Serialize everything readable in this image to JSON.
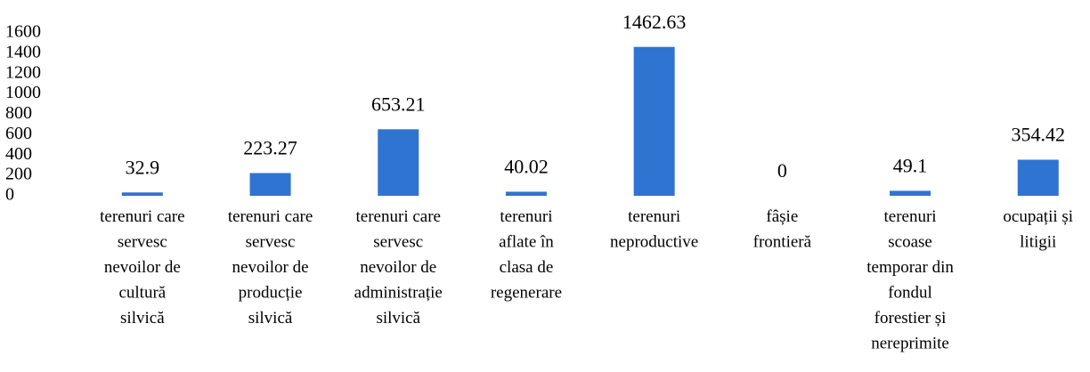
{
  "chart_data": {
    "type": "bar",
    "categories": [
      "terenuri care\nservesc\nnevoilor de\ncultură\nsilvică",
      "terenuri care\nservesc\nnevoilor de\nproducție\nsilvică",
      "terenuri care\nservesc\nnevoilor de\nadministrație\nsilvică",
      "terenuri\naflate în\nclasa de\nregenerare",
      "terenuri\nneproductive",
      "fâșie\nfrontieră",
      "terenuri\nscoase\ntemporar din\nfondul\nforestier și\nnereprimite",
      "ocupații și\nlitigii"
    ],
    "values": [
      32.9,
      223.27,
      653.21,
      40.02,
      1462.63,
      0,
      49.1,
      354.42
    ],
    "color": "#2f74d0",
    "ylim": [
      0,
      1600
    ],
    "yticks": [
      0,
      200,
      400,
      600,
      800,
      1000,
      1200,
      1400,
      1600
    ],
    "grid": false
  }
}
